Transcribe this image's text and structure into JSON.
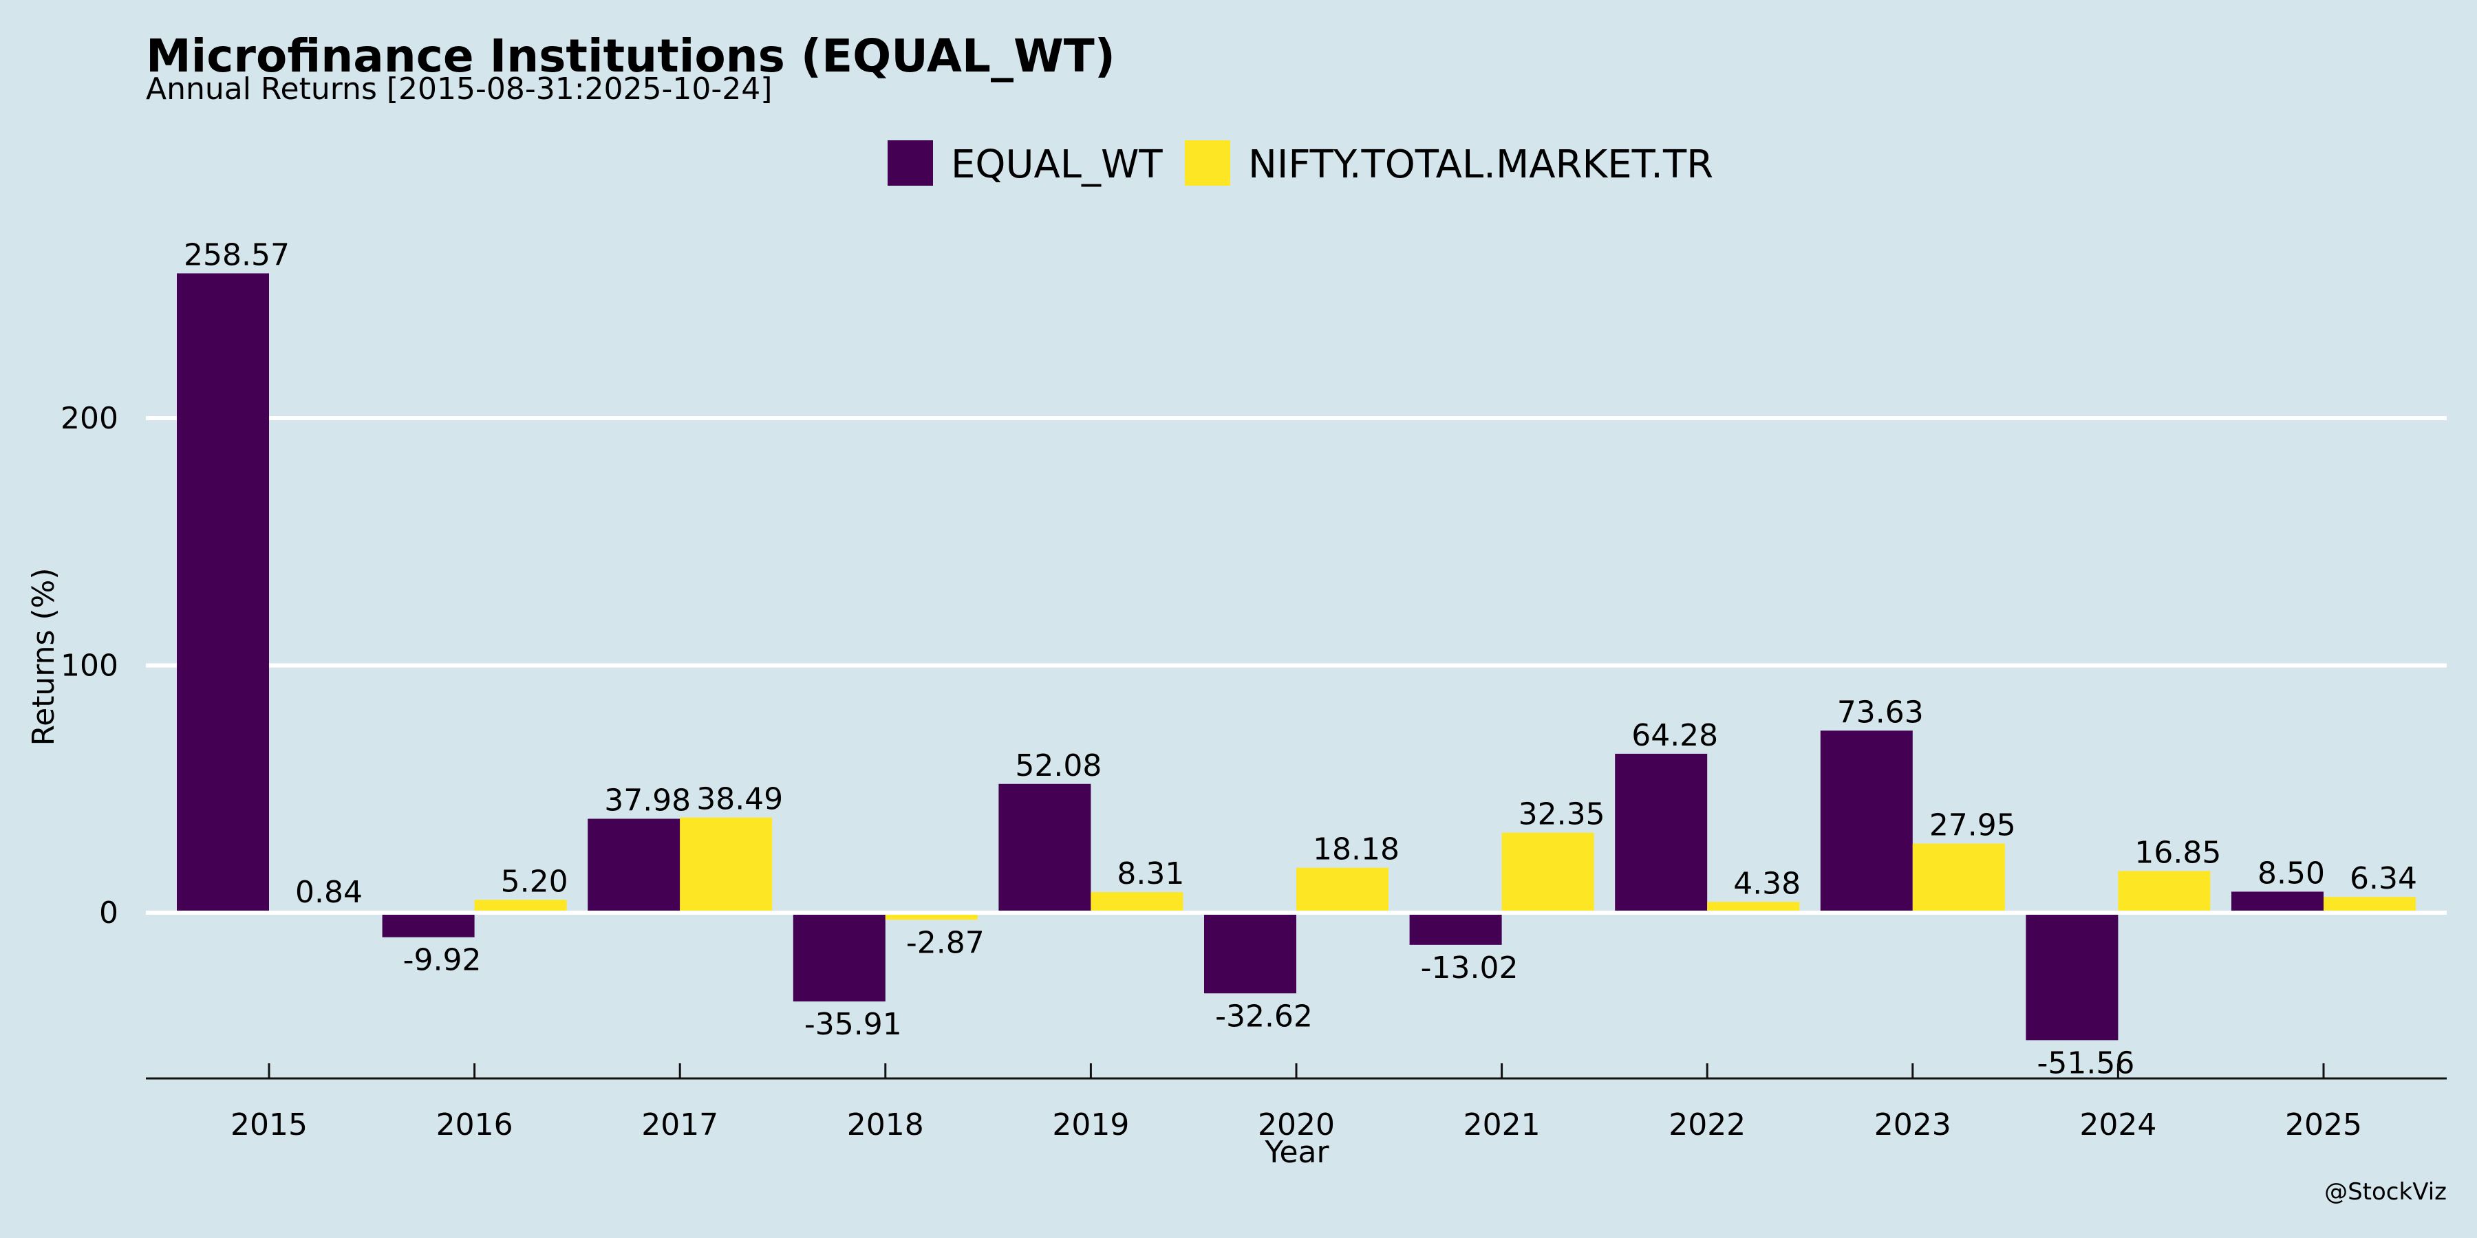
{
  "chart_data": {
    "type": "bar",
    "title": "Microfinance Institutions (EQUAL_WT)",
    "subtitle": "Annual Returns [2015-08-31:2025-10-24]",
    "xlabel": "Year",
    "ylabel": "Returns (%)",
    "categories": [
      "2015",
      "2016",
      "2017",
      "2018",
      "2019",
      "2020",
      "2021",
      "2022",
      "2023",
      "2024",
      "2025"
    ],
    "series": [
      {
        "name": "EQUAL_WT",
        "color": "#440154",
        "values": [
          258.57,
          -9.92,
          37.98,
          -35.91,
          52.08,
          -32.62,
          -13.02,
          64.28,
          73.63,
          -51.56,
          8.5
        ],
        "labels": [
          "258.57",
          "-9.92",
          "37.98",
          "-35.91",
          "52.08",
          "-32.62",
          "-13.02",
          "64.28",
          "73.63",
          "-51.56",
          "8.50"
        ]
      },
      {
        "name": "NIFTY.TOTAL.MARKET.TR",
        "color": "#fde725",
        "values": [
          0.84,
          5.2,
          38.49,
          -2.87,
          8.31,
          18.18,
          32.35,
          4.38,
          27.95,
          16.85,
          6.34
        ],
        "labels": [
          "0.84",
          "5.20",
          "38.49",
          "-2.87",
          "8.31",
          "18.18",
          "32.35",
          "4.38",
          "27.95",
          "16.85",
          "6.34"
        ]
      }
    ],
    "ylim": [
      -68,
      280
    ],
    "yticks": [
      0,
      100,
      200
    ],
    "grid": true,
    "legend": "top-center",
    "credit": "@StockViz"
  }
}
